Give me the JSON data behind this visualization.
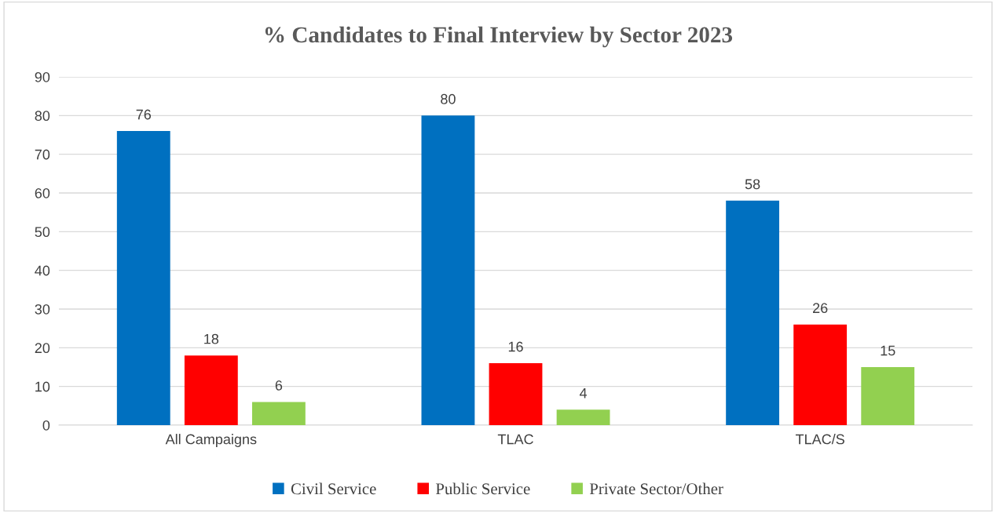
{
  "chart_data": {
    "type": "bar",
    "title": "% Candidates to Final Interview by Sector 2023",
    "categories": [
      "All Campaigns",
      "TLAC",
      "TLAC/S"
    ],
    "series": [
      {
        "name": "Civil Service",
        "color": "#0070c0",
        "values": [
          76,
          80,
          58
        ]
      },
      {
        "name": "Public Service",
        "color": "#ff0000",
        "values": [
          18,
          16,
          26
        ]
      },
      {
        "name": "Private Sector/Other",
        "color": "#92d050",
        "values": [
          6,
          4,
          15
        ]
      }
    ],
    "ylim": [
      0,
      90
    ],
    "yticks": [
      0,
      10,
      20,
      30,
      40,
      50,
      60,
      70,
      80,
      90
    ],
    "grid": "y",
    "legend": "bottom",
    "data_labels": true
  }
}
